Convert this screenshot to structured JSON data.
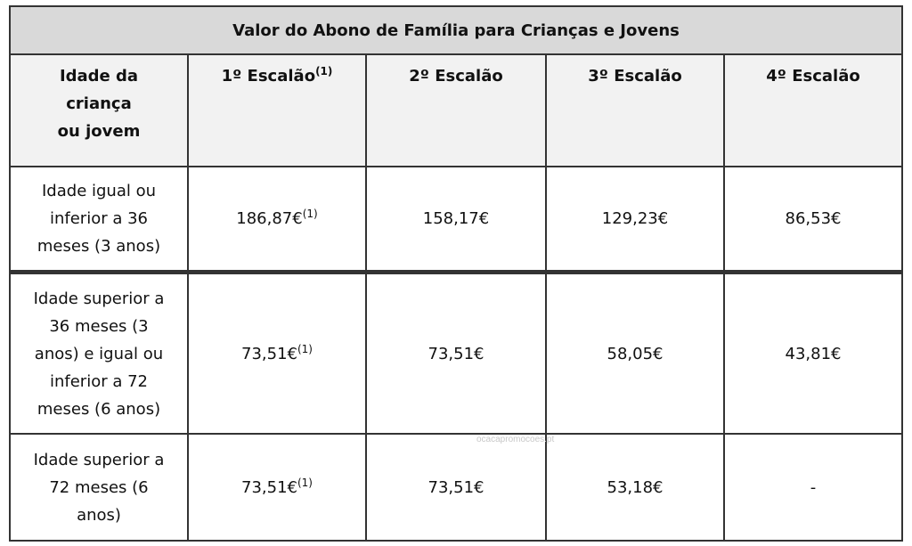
{
  "title": "Valor do Abono de Família para Crianças e Jovens",
  "table": {
    "header": [
      {
        "text": "Idade da criança ou jovem"
      },
      {
        "text": "1º Escalão",
        "note": "(1)"
      },
      {
        "text": "2º Escalão"
      },
      {
        "text": "3º Escalão"
      },
      {
        "text": "4º Escalão"
      }
    ],
    "rows": [
      [
        {
          "text": "Idade igual ou inferior a 36 meses (3 anos)"
        },
        {
          "text": "186,87€",
          "note": "(1)"
        },
        {
          "text": "158,17€"
        },
        {
          "text": "129,23€"
        },
        {
          "text": "86,53€"
        }
      ],
      [
        {
          "text": "Idade superior a 36 meses (3 anos) e igual ou inferior a 72 meses (6 anos)"
        },
        {
          "text": "73,51€",
          "note": "(1)"
        },
        {
          "text": "73,51€"
        },
        {
          "text": "58,05€"
        },
        {
          "text": "43,81€"
        }
      ],
      [
        {
          "text": "Idade superior a 72 meses (6 anos)"
        },
        {
          "text": "73,51€",
          "note": "(1)"
        },
        {
          "text": "73,51€"
        },
        {
          "text": "53,18€"
        },
        {
          "text": "-"
        }
      ]
    ]
  },
  "watermark": "ocacapromocoes.pt"
}
